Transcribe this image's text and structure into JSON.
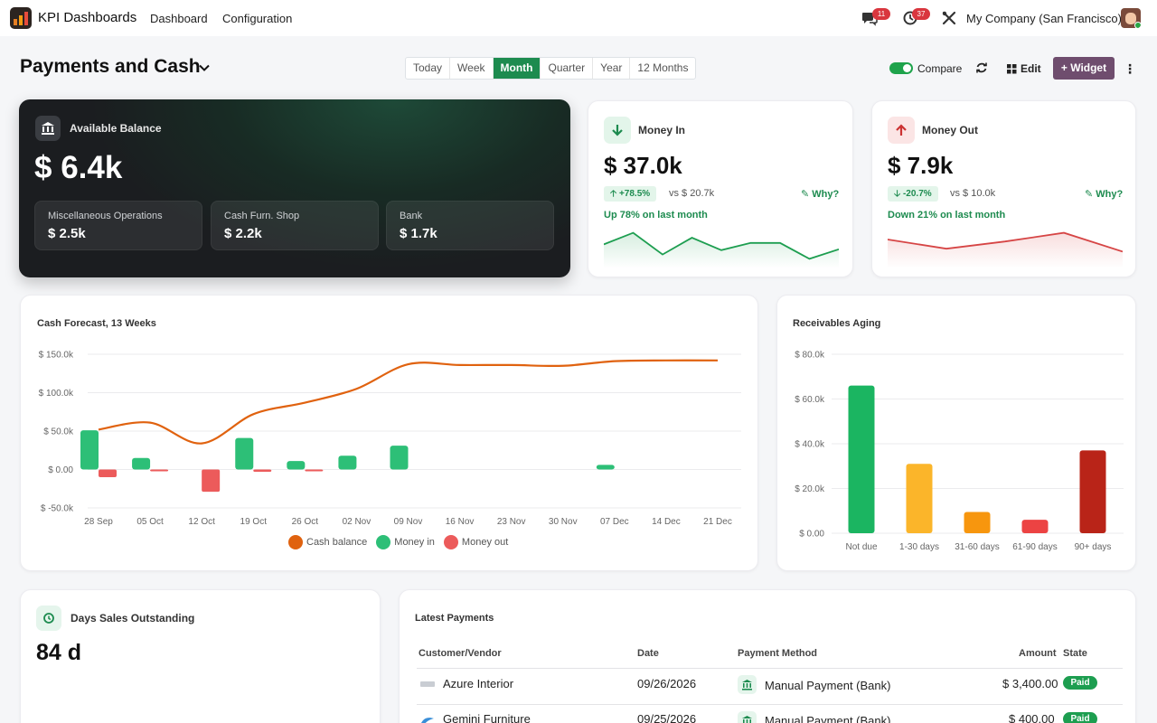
{
  "header": {
    "app_name": "KPI Dashboards",
    "nav": [
      "Dashboard",
      "Configuration"
    ],
    "messages_count": "11",
    "activities_count": "37",
    "company": "My Company (San Francisco)"
  },
  "page": {
    "title": "Payments and Cash",
    "periods": [
      "Today",
      "Week",
      "Month",
      "Quarter",
      "Year",
      "12 Months"
    ],
    "active_period": "Month",
    "compare_label": "Compare",
    "compare_on": true,
    "edit_label": "Edit",
    "widget_label": "+ Widget"
  },
  "balance": {
    "label": "Available Balance",
    "value": "$ 6.4k",
    "subs": [
      {
        "label": "Miscellaneous Operations",
        "value": "$ 2.5k"
      },
      {
        "label": "Cash Furn. Shop",
        "value": "$ 2.2k"
      },
      {
        "label": "Bank",
        "value": "$ 1.7k"
      }
    ]
  },
  "money_in": {
    "label": "Money In",
    "value": "$ 37.0k",
    "change": "+78.5%",
    "vs": "vs $ 20.7k",
    "why": "Why?",
    "note": "Up 78% on last month",
    "color": "#1d9e50",
    "trend": [
      0.55,
      0.95,
      0.2,
      0.78,
      0.35,
      0.6,
      0.6,
      0.05,
      0.38
    ]
  },
  "money_out": {
    "label": "Money Out",
    "value": "$ 7.9k",
    "change": "-20.7%",
    "vs": "vs $ 10.0k",
    "why": "Why?",
    "note": "Down 21% on last month",
    "color": "#d64545",
    "trend": [
      0.72,
      0.4,
      0.65,
      0.95,
      0.3
    ]
  },
  "cash_forecast": {
    "title": "Cash Forecast, 13 Weeks",
    "legend": [
      "Cash balance",
      "Money in",
      "Money out"
    ],
    "colors": {
      "balance": "#e0620f",
      "in": "#2dbf77",
      "out": "#ec5b5b"
    }
  },
  "receivables_aging": {
    "title": "Receivables Aging"
  },
  "dso": {
    "label": "Days Sales Outstanding",
    "value": "84 d"
  },
  "latest_payments": {
    "title": "Latest Payments",
    "columns": [
      "Customer/Vendor",
      "Date",
      "Payment Method",
      "Amount",
      "State"
    ],
    "rows": [
      {
        "customer": "Azure Interior",
        "date": "09/26/2026",
        "method": "Manual Payment (Bank)",
        "amount": "$ 3,400.00",
        "state": "Paid"
      },
      {
        "customer": "Gemini Furniture",
        "date": "09/25/2026",
        "method": "Manual Payment (Bank)",
        "amount": "$ 400.00",
        "state": "Paid"
      }
    ]
  },
  "chart_data": [
    {
      "type": "line",
      "title": "Cash Forecast, 13 Weeks",
      "categories": [
        "28 Sep",
        "05 Oct",
        "12 Oct",
        "19 Oct",
        "26 Oct",
        "02 Nov",
        "09 Nov",
        "16 Nov",
        "23 Nov",
        "30 Nov",
        "07 Dec",
        "14 Dec",
        "21 Dec"
      ],
      "yticks": [
        "$ 150.0k",
        "$ 100.0k",
        "$ 50.0k",
        "$ 0.00",
        "$ -50.0k"
      ],
      "ylim": [
        -50000,
        150000
      ],
      "series": [
        {
          "name": "Cash balance",
          "type": "line",
          "values": [
            52000,
            61000,
            34000,
            72000,
            87000,
            105000,
            137000,
            136000,
            136000,
            135000,
            141000,
            142000,
            142000
          ]
        },
        {
          "name": "Money in",
          "type": "bar",
          "values": [
            51000,
            15000,
            0,
            41000,
            11000,
            18000,
            31000,
            0,
            0,
            0,
            6000,
            0,
            0
          ]
        },
        {
          "name": "Money out",
          "type": "bar",
          "values": [
            -10000,
            -1000,
            -29000,
            -3000,
            -2000,
            0,
            0,
            0,
            0,
            0,
            0,
            0,
            0
          ]
        }
      ],
      "legend": [
        "Cash balance",
        "Money in",
        "Money out"
      ],
      "grid": true
    },
    {
      "type": "bar",
      "title": "Receivables Aging",
      "categories": [
        "Not due",
        "1-30 days",
        "31-60 days",
        "61-90 days",
        "90+ days"
      ],
      "values": [
        66000,
        31000,
        9500,
        6000,
        37000
      ],
      "colors": [
        "#1bb561",
        "#fbb52a",
        "#f7960e",
        "#ec4343",
        "#b92418"
      ],
      "yticks": [
        "$ 80.0k",
        "$ 60.0k",
        "$ 40.0k",
        "$ 20.0k",
        "$ 0.00"
      ],
      "ylim": [
        0,
        80000
      ],
      "grid": true
    }
  ]
}
